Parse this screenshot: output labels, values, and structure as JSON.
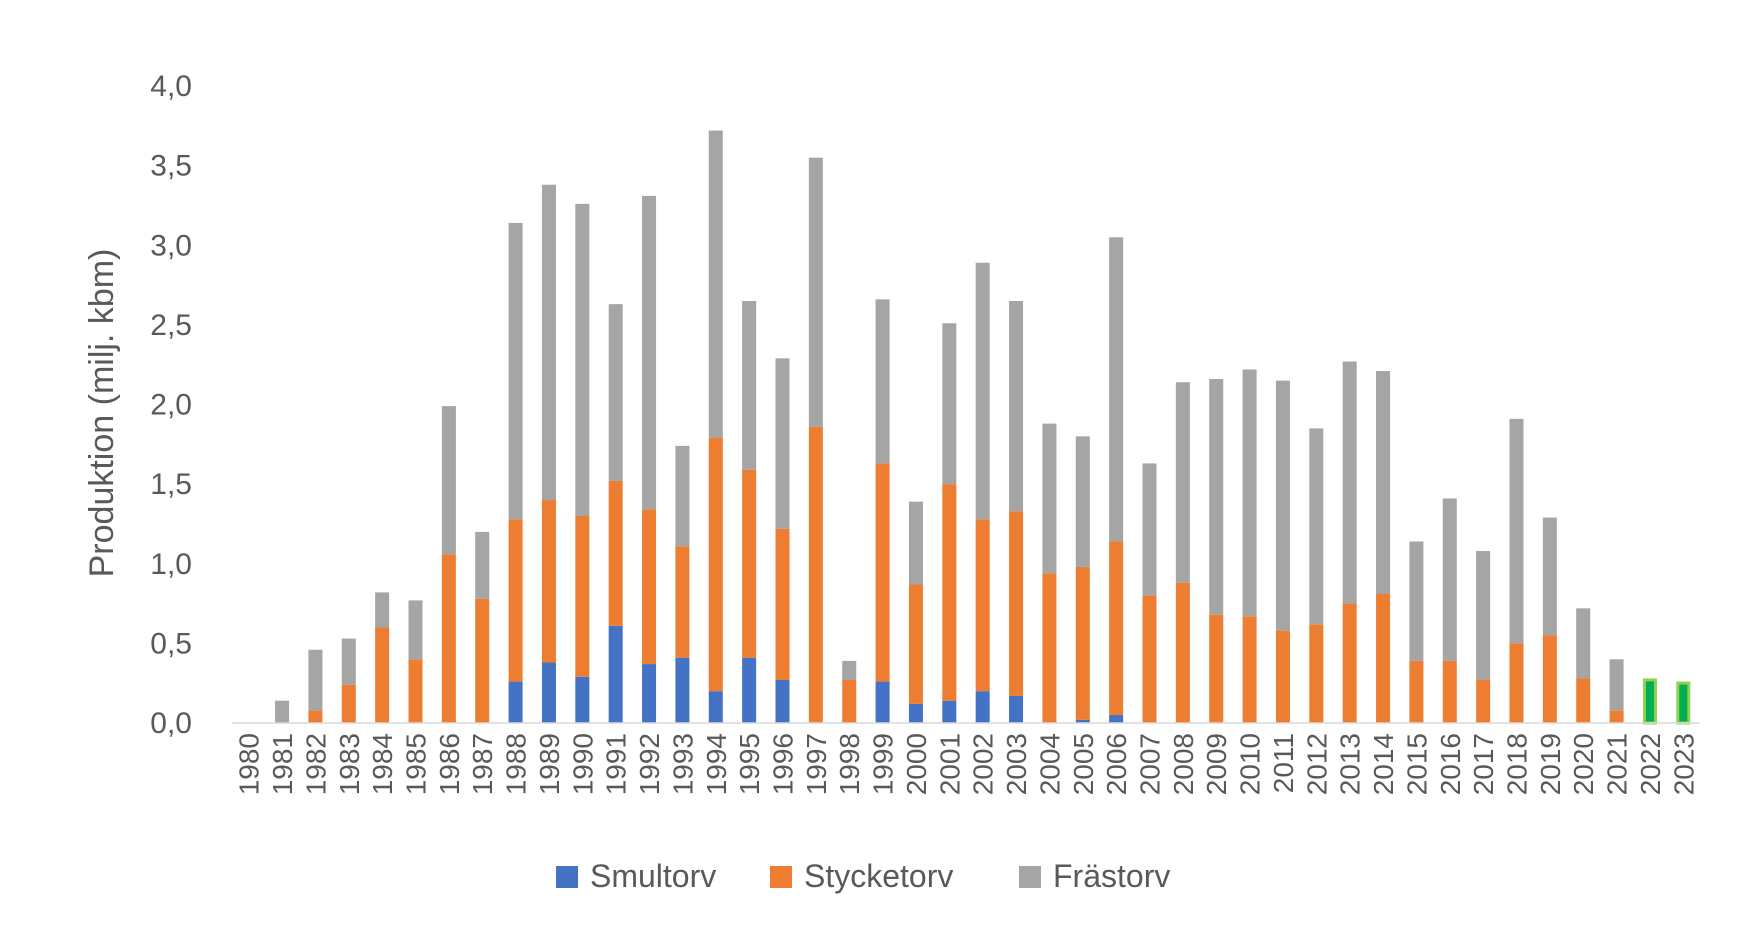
{
  "chart_data": {
    "type": "bar",
    "stacked": true,
    "ylabel": "Produktion (milj. kbm)",
    "xlabel": "",
    "ylim": [
      0,
      4.0
    ],
    "yticks": [
      "0,0",
      "0,5",
      "1,0",
      "1,5",
      "2,0",
      "2,5",
      "3,0",
      "3,5",
      "4,0"
    ],
    "grid": false,
    "legend_position": "bottom",
    "categories": [
      "1980",
      "1981",
      "1982",
      "1983",
      "1984",
      "1985",
      "1986",
      "1987",
      "1988",
      "1989",
      "1990",
      "1991",
      "1992",
      "1993",
      "1994",
      "1995",
      "1996",
      "1997",
      "1998",
      "1999",
      "2000",
      "2001",
      "2002",
      "2003",
      "2004",
      "2005",
      "2006",
      "2007",
      "2008",
      "2009",
      "2010",
      "2011",
      "2012",
      "2013",
      "2014",
      "2015",
      "2016",
      "2017",
      "2018",
      "2019",
      "2020",
      "2021",
      "2022",
      "2023"
    ],
    "series": [
      {
        "name": "Smultorv",
        "color": "#4472C4",
        "values": [
          0,
          0,
          0,
          0,
          0,
          0,
          0,
          0,
          0.26,
          0.38,
          0.29,
          0.61,
          0.37,
          0.41,
          0.2,
          0.41,
          0.27,
          0,
          0,
          0.26,
          0.12,
          0.14,
          0.2,
          0.17,
          0,
          0.02,
          0.05,
          0,
          0,
          0,
          0,
          0,
          0,
          0,
          0,
          0,
          0,
          0,
          0,
          0,
          0,
          0,
          0,
          0
        ]
      },
      {
        "name": "Stycketorv",
        "color": "#ED7D31",
        "values": [
          0,
          0,
          0.08,
          0.24,
          0.6,
          0.4,
          1.06,
          0.78,
          1.02,
          1.02,
          1.01,
          0.91,
          0.97,
          0.7,
          1.59,
          1.18,
          0.95,
          1.86,
          0.27,
          1.37,
          0.75,
          1.36,
          1.08,
          1.16,
          0.94,
          0.96,
          1.09,
          0.8,
          0.88,
          0.68,
          0.67,
          0.58,
          0.62,
          0.75,
          0.81,
          0.39,
          0.39,
          0.27,
          0.5,
          0.55,
          0.28,
          0.08,
          0,
          0
        ]
      },
      {
        "name": "Frästorv",
        "color": "#A5A5A5",
        "values": [
          0,
          0.14,
          0.38,
          0.29,
          0.22,
          0.37,
          0.93,
          0.42,
          1.86,
          1.98,
          1.96,
          1.11,
          1.97,
          0.63,
          1.93,
          1.06,
          1.07,
          1.69,
          0.12,
          1.03,
          0.52,
          1.01,
          1.61,
          1.32,
          0.94,
          0.82,
          1.91,
          0.83,
          1.26,
          1.48,
          1.55,
          1.57,
          1.23,
          1.52,
          1.4,
          0.75,
          1.02,
          0.81,
          1.41,
          0.74,
          0.44,
          0.32,
          0,
          0
        ]
      }
    ],
    "highlight": {
      "color": "#00B050",
      "border_color": "#92D050",
      "values": [
        0,
        0,
        0,
        0,
        0,
        0,
        0,
        0,
        0,
        0,
        0,
        0,
        0,
        0,
        0,
        0,
        0,
        0,
        0,
        0,
        0,
        0,
        0,
        0,
        0,
        0,
        0,
        0,
        0,
        0,
        0,
        0,
        0,
        0,
        0,
        0,
        0,
        0,
        0,
        0,
        0,
        0,
        0.28,
        0.26
      ]
    }
  }
}
